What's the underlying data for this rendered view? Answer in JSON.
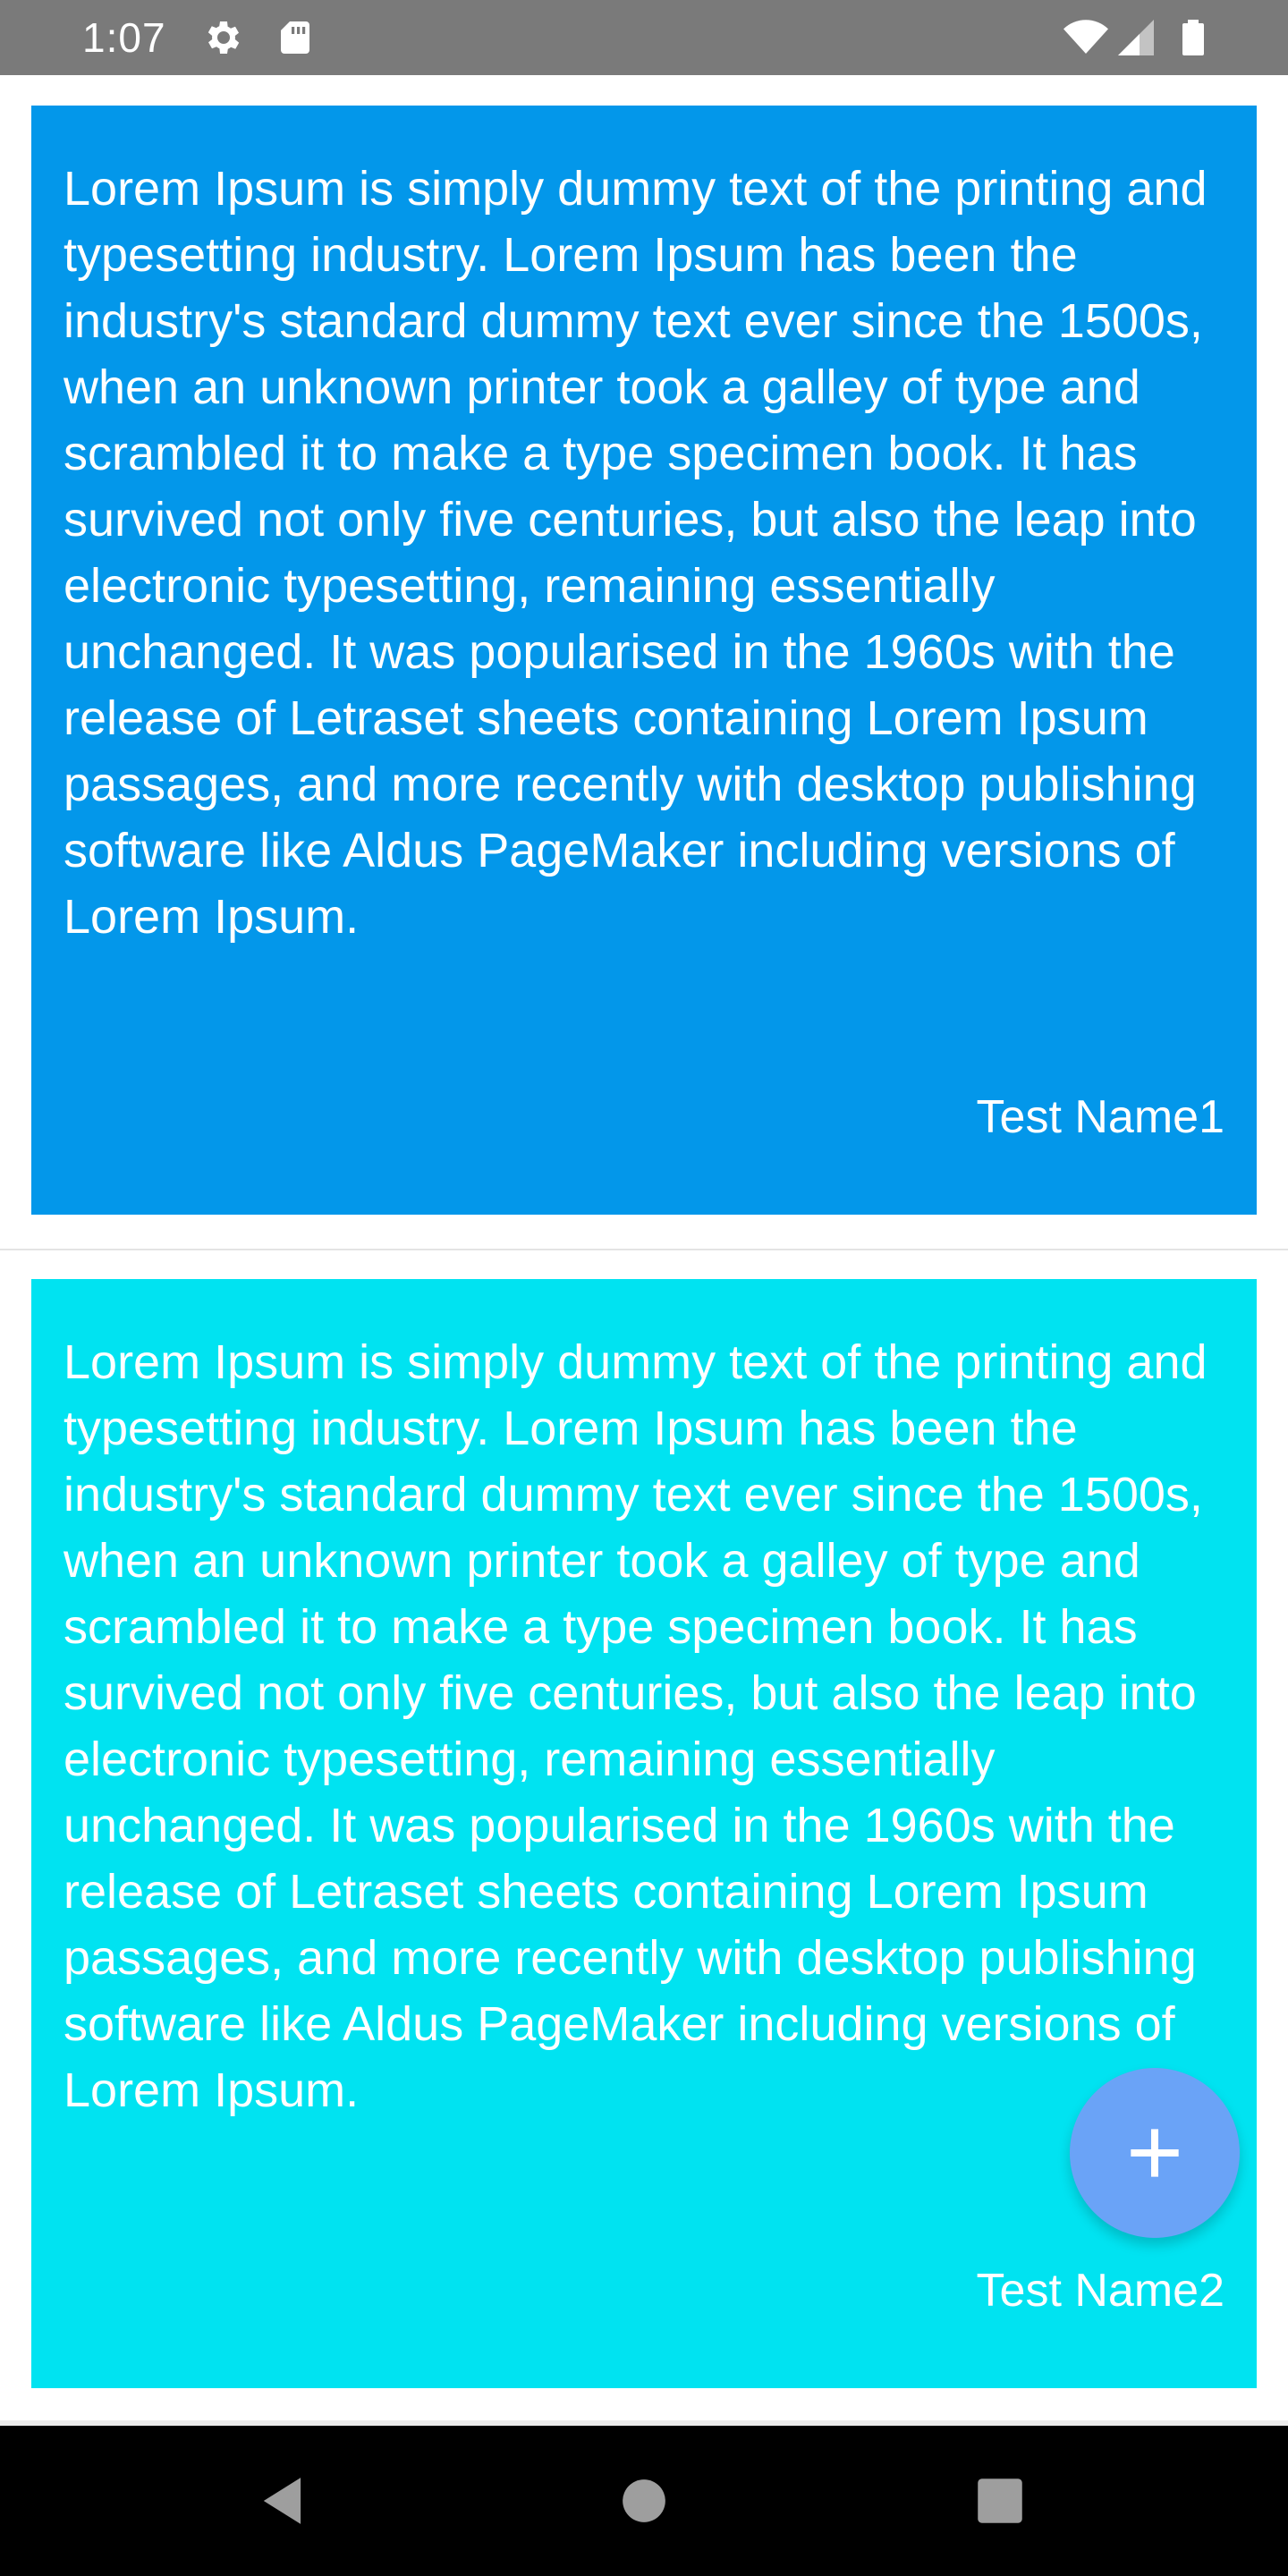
{
  "status_bar": {
    "time": "1:07",
    "icons": [
      "settings-icon",
      "sd-card-icon",
      "wifi-icon",
      "signal-icon",
      "battery-icon"
    ],
    "background": "#7a7a7a"
  },
  "cards": [
    {
      "body": "Lorem Ipsum is simply dummy text of the printing and typesetting industry. Lorem Ipsum has been the industry's standard dummy text ever since the 1500s, when an unknown printer took a galley of type and scrambled it to make a type specimen book. It has survived not only five centuries, but also the leap into electronic typesetting, remaining essentially unchanged. It was popularised in the 1960s with the release of Letraset sheets containing Lorem Ipsum passages, and more recently with desktop publishing software like Aldus PageMaker including versions of Lorem Ipsum.",
      "author": "Test Name1",
      "color": "#0397ea"
    },
    {
      "body": "Lorem Ipsum is simply dummy text of the printing and typesetting industry. Lorem Ipsum has been the industry's standard dummy text ever since the 1500s, when an unknown printer took a galley of type and scrambled it to make a type specimen book. It has survived not only five centuries, but also the leap into electronic typesetting, remaining essentially unchanged. It was popularised in the 1960s with the release of Letraset sheets containing Lorem Ipsum passages, and more recently with desktop publishing software like Aldus PageMaker including versions of Lorem Ipsum.",
      "author": "Test Name2",
      "color": "#00e3f1"
    }
  ],
  "fab": {
    "icon": "plus-icon",
    "color": "#6aa3f7"
  },
  "nav_bar": {
    "icons": [
      "back-icon",
      "home-icon",
      "recents-icon"
    ]
  }
}
